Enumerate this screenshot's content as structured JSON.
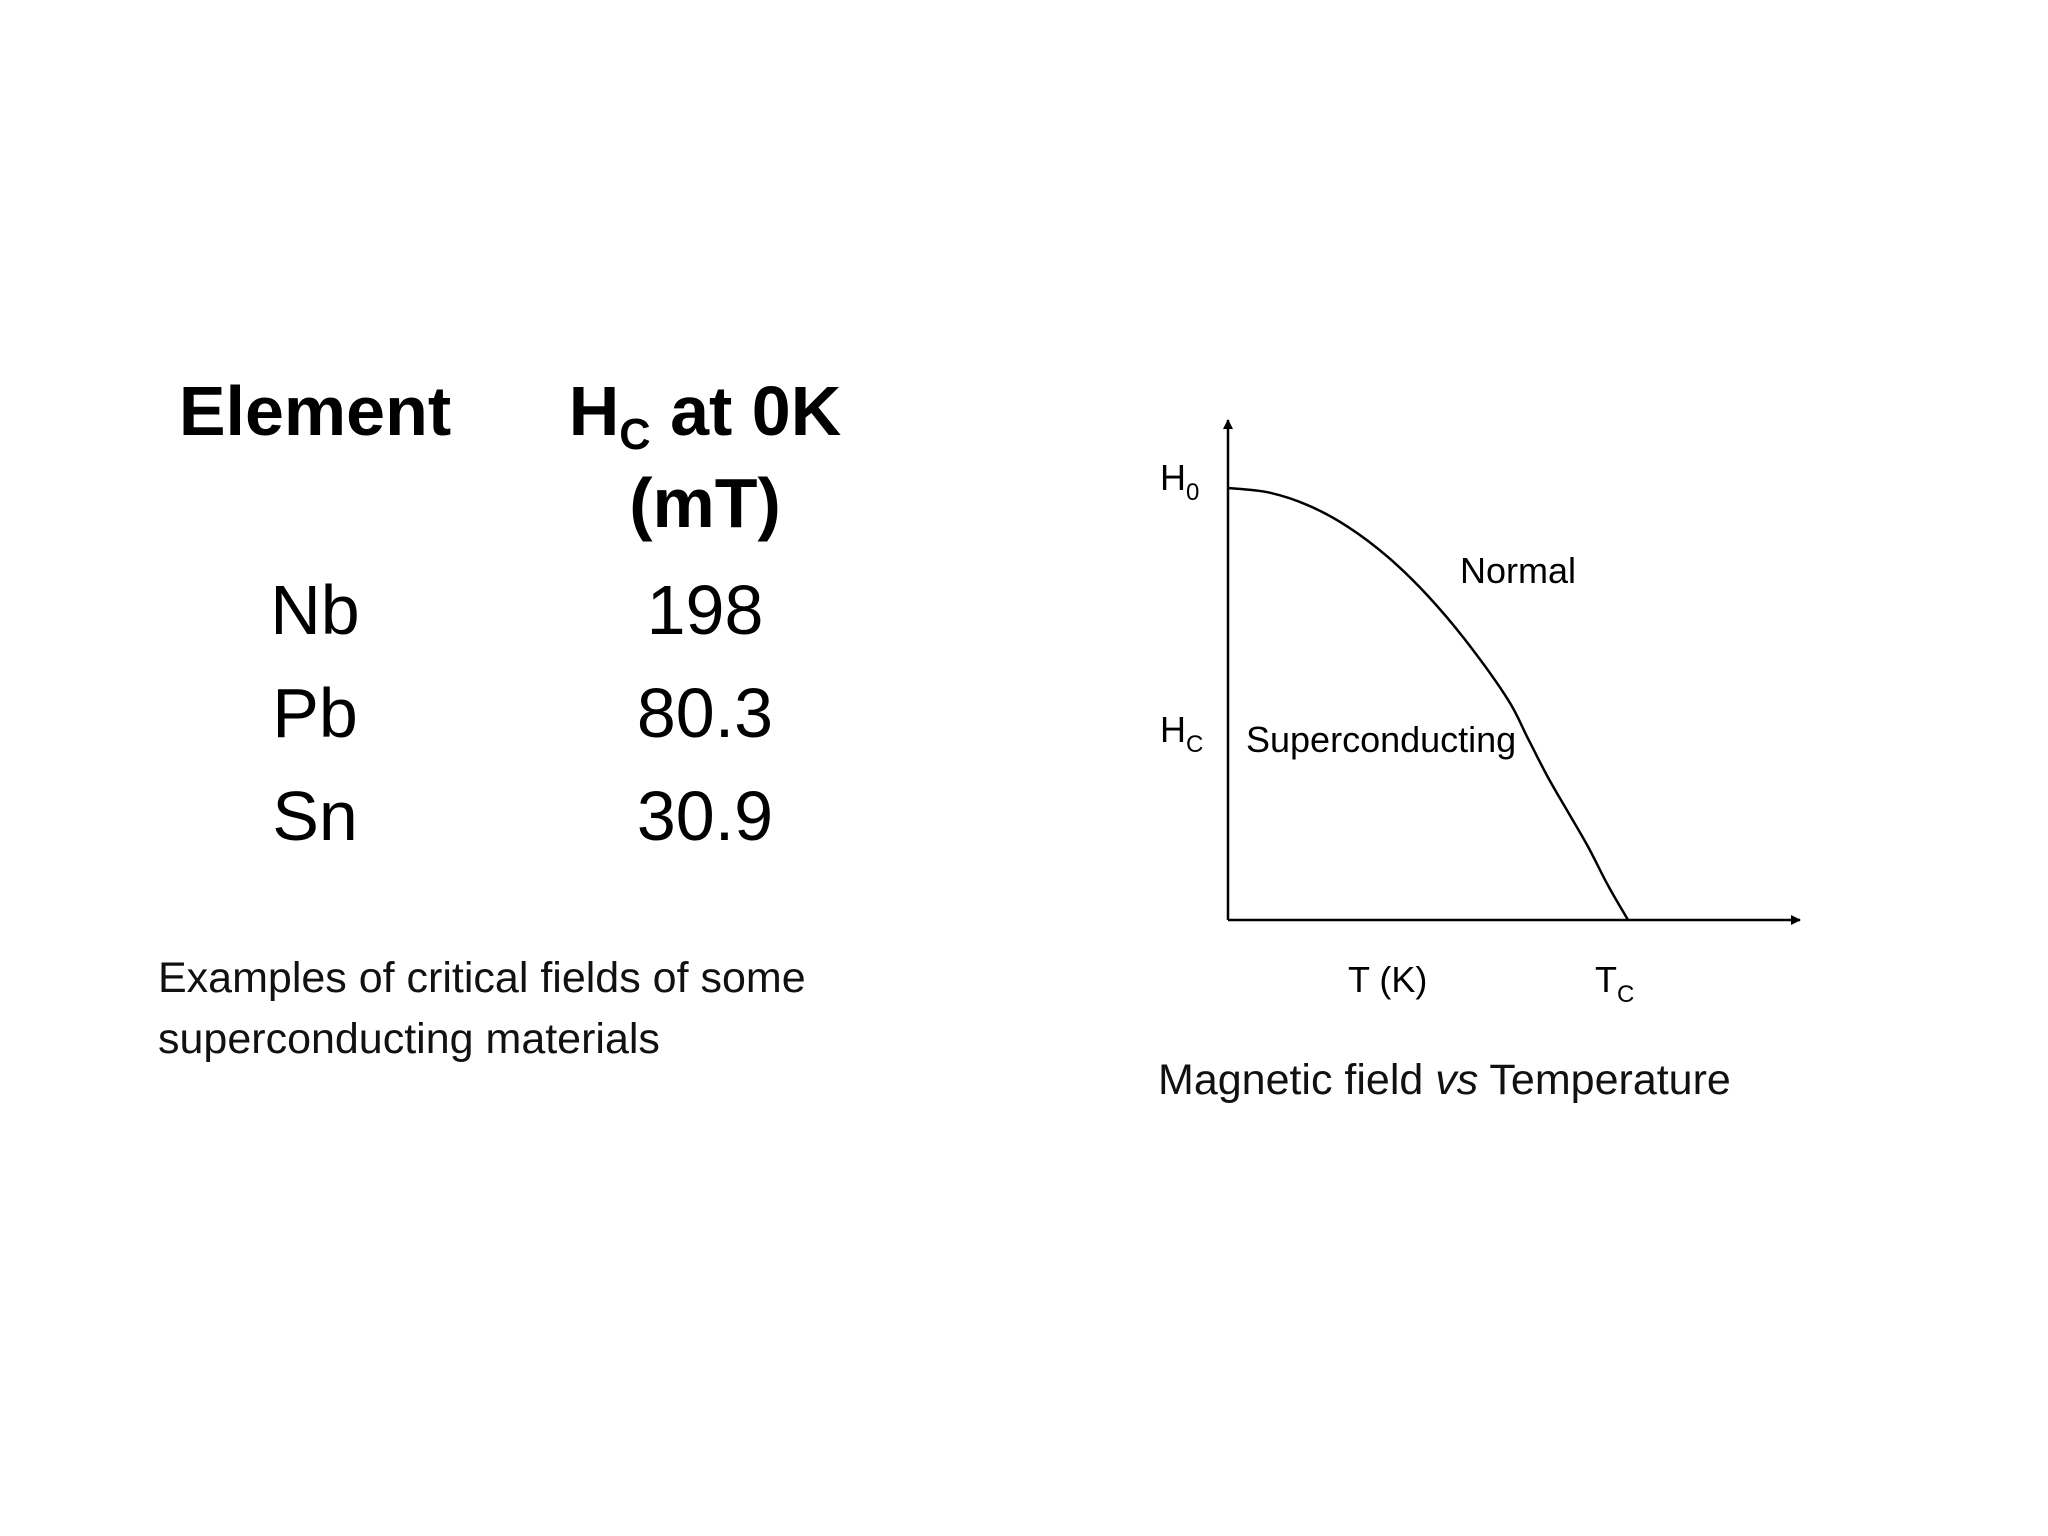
{
  "table": {
    "header_element": "Element",
    "header_hc_main": "H",
    "header_hc_sub": "C",
    "header_hc_rest": " at 0K",
    "header_hc_unit": "(mT)",
    "rows": [
      {
        "element": "Nb",
        "value": "198"
      },
      {
        "element": "Pb",
        "value": "80.3"
      },
      {
        "element": "Sn",
        "value": "30.9"
      }
    ]
  },
  "table_caption_line1": "Examples of critical fields of some",
  "table_caption_line2": "superconducting materials",
  "figure_caption_pre": "Magnetic field ",
  "figure_caption_em": "vs",
  "figure_caption_post": " Temperature",
  "colors": {
    "text": "#000000",
    "line": "#000000",
    "background": "#ffffff"
  },
  "chart_data": {
    "type": "line",
    "series": [
      {
        "name": "",
        "x": [
          0,
          0.1,
          0.2,
          0.3,
          0.4,
          0.5,
          0.6,
          0.7,
          0.75,
          0.8,
          0.85,
          0.9,
          0.95,
          1.0
        ],
        "y": [
          1.0,
          0.99,
          0.96,
          0.91,
          0.84,
          0.75,
          0.64,
          0.51,
          0.42,
          0.33,
          0.25,
          0.17,
          0.08,
          0.0
        ]
      }
    ],
    "xlabel": "T (K)",
    "ylabel": "",
    "x_tick_label_main": "T",
    "x_tick_label_sub": "C",
    "y_tick_h0_main": "H",
    "y_tick_h0_sub": "0",
    "y_tick_hc_main": "H",
    "y_tick_hc_sub": "C",
    "region_normal_label": "Normal",
    "region_super_label": "Superconducting",
    "grid": false,
    "legend": "none"
  }
}
